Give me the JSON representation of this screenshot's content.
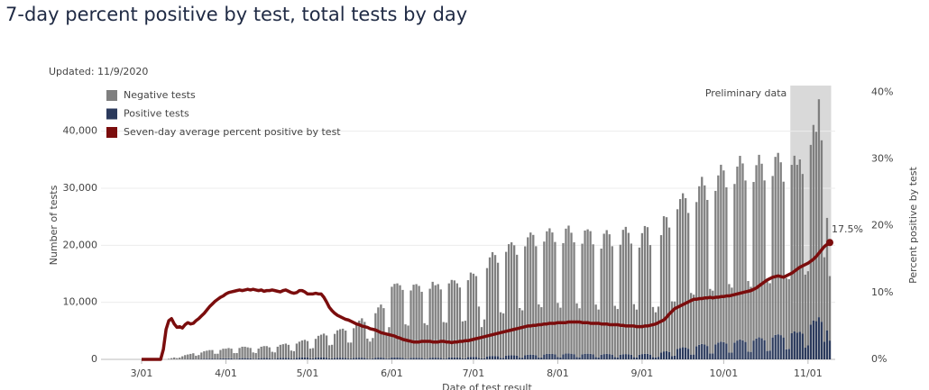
{
  "chart_data": {
    "type": "bar",
    "stacked": true,
    "title": "7-day percent positive by test, total tests by day",
    "subtitle": "Updated: 11/9/2020",
    "x_label": "Date of test result",
    "y_label": "Number of tests",
    "y2_label": "Percent positive by test",
    "highlight": {
      "label": "Preliminary data"
    },
    "annotations": [
      {
        "text": "17.5%"
      }
    ],
    "grid": true,
    "ylim": [
      0,
      48000
    ],
    "yticks": [
      0,
      {
        "value": 10000,
        "label": "10,000"
      },
      {
        "value": 20000,
        "label": "20,000"
      },
      {
        "value": 30000,
        "label": "30,000"
      },
      {
        "value": 40000,
        "label": "40,000"
      }
    ],
    "y2lim": [
      0,
      41
    ],
    "y2ticks": [
      {
        "value": 0,
        "label": "0%"
      },
      {
        "value": 10,
        "label": "10%"
      },
      {
        "value": 20,
        "label": "20%"
      },
      {
        "value": 30,
        "label": "30%"
      },
      {
        "value": 40,
        "label": "40%"
      }
    ],
    "categories": [
      "3/01",
      null,
      null,
      null,
      null,
      null,
      null,
      null,
      null,
      null,
      null,
      null,
      null,
      null,
      null,
      null,
      null,
      null,
      null,
      null,
      null,
      null,
      null,
      null,
      null,
      null,
      null,
      null,
      null,
      null,
      null,
      "4/01",
      null,
      null,
      null,
      null,
      null,
      null,
      null,
      null,
      null,
      null,
      null,
      null,
      null,
      null,
      null,
      null,
      null,
      null,
      null,
      null,
      null,
      null,
      null,
      null,
      null,
      null,
      null,
      null,
      null,
      "5/01",
      null,
      null,
      null,
      null,
      null,
      null,
      null,
      null,
      null,
      null,
      null,
      null,
      null,
      null,
      null,
      null,
      null,
      null,
      null,
      null,
      null,
      null,
      null,
      null,
      null,
      null,
      null,
      null,
      null,
      null,
      "6/01",
      null,
      null,
      null,
      null,
      null,
      null,
      null,
      null,
      null,
      null,
      null,
      null,
      null,
      null,
      null,
      null,
      null,
      null,
      null,
      null,
      null,
      null,
      null,
      null,
      null,
      null,
      null,
      null,
      null,
      "7/01",
      null,
      null,
      null,
      null,
      null,
      null,
      null,
      null,
      null,
      null,
      null,
      null,
      null,
      null,
      null,
      null,
      null,
      null,
      null,
      null,
      null,
      null,
      null,
      null,
      null,
      null,
      null,
      null,
      null,
      null,
      "8/01",
      null,
      null,
      null,
      null,
      null,
      null,
      null,
      null,
      null,
      null,
      null,
      null,
      null,
      null,
      null,
      null,
      null,
      null,
      null,
      null,
      null,
      null,
      null,
      null,
      null,
      null,
      null,
      null,
      null,
      null,
      "9/01",
      null,
      null,
      null,
      null,
      null,
      null,
      null,
      null,
      null,
      null,
      null,
      null,
      null,
      null,
      null,
      null,
      null,
      null,
      null,
      null,
      null,
      null,
      null,
      null,
      null,
      null,
      null,
      null,
      null,
      "10/01",
      null,
      null,
      null,
      null,
      null,
      null,
      null,
      null,
      null,
      null,
      null,
      null,
      null,
      null,
      null,
      null,
      null,
      null,
      null,
      null,
      null,
      null,
      null,
      null,
      null,
      null,
      null,
      null,
      null,
      null,
      "11/01",
      null,
      null,
      null,
      null,
      null,
      null,
      null,
      null
    ],
    "series": [
      {
        "name": "Negative tests",
        "color": "#7f7f7f",
        "values": [
          0,
          0,
          0,
          0,
          0,
          0,
          0,
          0,
          0,
          0,
          100,
          200,
          300,
          200,
          300,
          500,
          700,
          800,
          900,
          1000,
          600,
          700,
          1100,
          1300,
          1400,
          1500,
          1500,
          900,
          900,
          1500,
          1700,
          1700,
          1800,
          1700,
          1000,
          1000,
          1800,
          2000,
          2000,
          1900,
          1800,
          1100,
          1000,
          1700,
          2000,
          2100,
          2100,
          1900,
          1200,
          1100,
          2000,
          2300,
          2400,
          2500,
          2300,
          1400,
          1300,
          2500,
          2800,
          3000,
          3100,
          2900,
          1700,
          1800,
          3300,
          3800,
          4000,
          4200,
          3900,
          2300,
          2400,
          4200,
          4800,
          5000,
          5100,
          4800,
          2800,
          2800,
          5200,
          5900,
          6500,
          6900,
          6300,
          3500,
          3000,
          3600,
          7800,
          8800,
          9300,
          8700,
          4500,
          5500,
          12400,
          12900,
          13000,
          12700,
          11900,
          6000,
          5800,
          11800,
          12800,
          12900,
          12600,
          11600,
          6200,
          5900,
          12100,
          13300,
          12700,
          12900,
          12000,
          6400,
          6300,
          13000,
          13600,
          13500,
          13000,
          12300,
          6500,
          6600,
          13500,
          14800,
          14600,
          14200,
          9000,
          5500,
          6800,
          15500,
          17300,
          18200,
          17700,
          16400,
          8000,
          7800,
          18200,
          19500,
          19800,
          19300,
          17700,
          8700,
          8300,
          19100,
          20600,
          21400,
          21000,
          19100,
          9300,
          8800,
          19800,
          21500,
          22000,
          21300,
          19700,
          9500,
          8700,
          19500,
          21900,
          22400,
          21200,
          19600,
          9400,
          8600,
          19400,
          21600,
          21800,
          21500,
          19300,
          9200,
          8400,
          18600,
          21100,
          21700,
          21000,
          19000,
          9000,
          8500,
          19300,
          21800,
          22300,
          21300,
          19500,
          9300,
          8400,
          18800,
          21200,
          22400,
          22200,
          19200,
          8800,
          7900,
          8800,
          20600,
          23700,
          23500,
          21800,
          9600,
          9500,
          24500,
          26100,
          27000,
          26200,
          23800,
          10800,
          10500,
          25300,
          27800,
          29300,
          27900,
          25600,
          11300,
          11000,
          26900,
          29300,
          31000,
          30100,
          27400,
          12000,
          11400,
          27800,
          30500,
          32200,
          31000,
          28300,
          12400,
          11400,
          27800,
          30400,
          32000,
          30600,
          28000,
          12300,
          11800,
          28300,
          31200,
          31800,
          30300,
          27300,
          12500,
          12200,
          29500,
          30800,
          29400,
          30200,
          28000,
          12800,
          13000,
          31500,
          34300,
          33200,
          38200,
          31800,
          14800,
          19700,
          11300
        ]
      },
      {
        "name": "Positive tests",
        "color": "#2b3a5c",
        "values": [
          0,
          0,
          0,
          0,
          0,
          0,
          0,
          0,
          0,
          0,
          10,
          20,
          30,
          20,
          20,
          40,
          50,
          60,
          60,
          70,
          40,
          60,
          100,
          120,
          130,
          130,
          140,
          80,
          90,
          150,
          170,
          180,
          190,
          180,
          100,
          110,
          200,
          220,
          220,
          210,
          200,
          120,
          110,
          190,
          220,
          230,
          230,
          210,
          130,
          120,
          220,
          250,
          260,
          270,
          250,
          150,
          140,
          270,
          300,
          320,
          330,
          310,
          180,
          170,
          300,
          330,
          330,
          320,
          290,
          170,
          160,
          270,
          290,
          290,
          280,
          250,
          150,
          150,
          270,
          290,
          300,
          300,
          270,
          140,
          120,
          150,
          290,
          310,
          310,
          280,
          140,
          150,
          330,
          330,
          320,
          300,
          280,
          140,
          130,
          280,
          290,
          290,
          280,
          250,
          140,
          130,
          280,
          300,
          300,
          290,
          260,
          140,
          140,
          320,
          330,
          340,
          330,
          300,
          160,
          170,
          380,
          420,
          420,
          400,
          260,
          160,
          200,
          500,
          580,
          600,
          590,
          540,
          260,
          260,
          650,
          700,
          720,
          700,
          640,
          300,
          300,
          720,
          800,
          840,
          820,
          740,
          340,
          350,
          850,
          950,
          980,
          950,
          880,
          400,
          360,
          880,
          1020,
          1050,
          1000,
          920,
          420,
          360,
          880,
          990,
          1000,
          980,
          870,
          410,
          340,
          820,
          930,
          960,
          930,
          840,
          390,
          330,
          800,
          910,
          930,
          880,
          800,
          380,
          330,
          800,
          930,
          980,
          980,
          840,
          380,
          350,
          450,
          1180,
          1400,
          1420,
          1310,
          570,
          650,
          1820,
          2000,
          2120,
          2060,
          1870,
          840,
          850,
          2280,
          2550,
          2700,
          2600,
          2350,
          1050,
          1050,
          2640,
          2950,
          3120,
          3020,
          2760,
          1200,
          1180,
          2950,
          3300,
          3480,
          3350,
          3060,
          1340,
          1320,
          3300,
          3650,
          3860,
          3700,
          3370,
          1480,
          1550,
          3850,
          4300,
          4400,
          4250,
          3850,
          1750,
          1850,
          4600,
          4900,
          4700,
          4850,
          4500,
          2050,
          2450,
          6100,
          6800,
          6700,
          7400,
          6600,
          3100,
          5100,
          3300
        ]
      },
      {
        "name": "Seven-day average percent positive by test",
        "color": "#7b0d0d",
        "type": "line",
        "axis": "y2",
        "values": [
          0,
          0,
          0,
          0,
          0,
          0,
          0,
          0,
          1.5,
          4.5,
          5.8,
          6.1,
          5.3,
          4.8,
          4.9,
          4.7,
          5.2,
          5.5,
          5.3,
          5.4,
          5.8,
          6.1,
          6.5,
          6.9,
          7.4,
          7.9,
          8.3,
          8.7,
          9.0,
          9.3,
          9.5,
          9.8,
          10.0,
          10.1,
          10.2,
          10.3,
          10.4,
          10.3,
          10.4,
          10.5,
          10.4,
          10.5,
          10.4,
          10.3,
          10.4,
          10.2,
          10.3,
          10.3,
          10.4,
          10.3,
          10.2,
          10.1,
          10.3,
          10.4,
          10.2,
          10.0,
          9.9,
          10.0,
          10.3,
          10.3,
          10.1,
          9.8,
          9.8,
          9.8,
          9.9,
          9.8,
          9.8,
          9.3,
          8.6,
          7.8,
          7.3,
          6.9,
          6.6,
          6.4,
          6.2,
          6.0,
          5.9,
          5.7,
          5.5,
          5.3,
          5.2,
          5.0,
          4.9,
          4.8,
          4.6,
          4.5,
          4.4,
          4.2,
          4.0,
          3.9,
          3.8,
          3.7,
          3.6,
          3.5,
          3.3,
          3.2,
          3.0,
          2.9,
          2.8,
          2.7,
          2.6,
          2.6,
          2.6,
          2.7,
          2.7,
          2.7,
          2.7,
          2.6,
          2.6,
          2.6,
          2.7,
          2.7,
          2.6,
          2.6,
          2.5,
          2.6,
          2.6,
          2.7,
          2.7,
          2.8,
          2.8,
          2.9,
          3.0,
          3.1,
          3.2,
          3.3,
          3.4,
          3.5,
          3.6,
          3.7,
          3.8,
          3.9,
          4.0,
          4.1,
          4.2,
          4.3,
          4.4,
          4.5,
          4.6,
          4.7,
          4.8,
          4.9,
          5.0,
          5.0,
          5.1,
          5.1,
          5.2,
          5.2,
          5.3,
          5.3,
          5.4,
          5.4,
          5.4,
          5.5,
          5.5,
          5.5,
          5.5,
          5.6,
          5.6,
          5.6,
          5.6,
          5.6,
          5.5,
          5.5,
          5.5,
          5.4,
          5.4,
          5.4,
          5.4,
          5.3,
          5.3,
          5.3,
          5.2,
          5.2,
          5.2,
          5.2,
          5.1,
          5.1,
          5.0,
          5.0,
          5.0,
          5.0,
          4.9,
          4.9,
          4.9,
          5.0,
          5.0,
          5.1,
          5.2,
          5.3,
          5.5,
          5.7,
          5.9,
          6.3,
          6.8,
          7.2,
          7.6,
          7.8,
          8.0,
          8.2,
          8.4,
          8.6,
          8.8,
          9.0,
          9.0,
          9.1,
          9.1,
          9.2,
          9.2,
          9.3,
          9.2,
          9.3,
          9.3,
          9.4,
          9.4,
          9.5,
          9.5,
          9.6,
          9.7,
          9.8,
          9.9,
          10.0,
          10.1,
          10.2,
          10.3,
          10.5,
          10.7,
          11.0,
          11.3,
          11.6,
          11.9,
          12.1,
          12.3,
          12.4,
          12.5,
          12.4,
          12.3,
          12.5,
          12.7,
          12.9,
          13.2,
          13.5,
          13.8,
          14.0,
          14.2,
          14.4,
          14.7,
          15.0,
          15.4,
          15.9,
          16.4,
          16.9,
          17.2,
          17.5
        ]
      }
    ]
  }
}
